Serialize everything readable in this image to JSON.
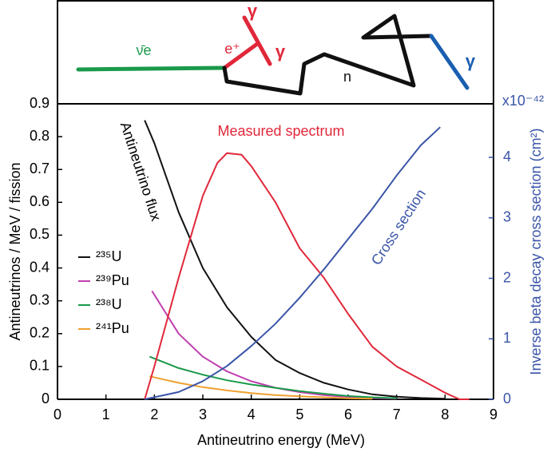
{
  "diagram": {
    "neutrino_label": "ν̄e",
    "positron_label": "e⁺",
    "gamma_labels": [
      "γ",
      "γ",
      "γ"
    ],
    "neutron_label": "n"
  },
  "chart_data": {
    "type": "line",
    "x_label": "Antineutrino energy (MeV)",
    "y_label": "Antineutrinos / MeV / fission",
    "y2_label": "Inverse beta decay cross section (cm²)",
    "y2_multiplier": "x10⁻⁴²",
    "annotations": [
      "Antineutrino flux",
      "Measured spectrum",
      "Cross section"
    ],
    "xlim": [
      0,
      9
    ],
    "xticks": [
      0,
      1,
      2,
      3,
      4,
      5,
      6,
      7,
      8,
      9
    ],
    "ylim": [
      0,
      0.9
    ],
    "yticks": [
      0,
      0.1,
      0.2,
      0.3,
      0.4,
      0.5,
      0.6,
      0.7,
      0.8,
      0.9
    ],
    "y2lim": [
      0,
      4.885
    ],
    "y2ticks": [
      0,
      1,
      2,
      3,
      4
    ],
    "series": [
      {
        "name": "²³⁵U",
        "color": "#111111",
        "legend": true,
        "x": [
          1.8,
          2,
          2.5,
          3,
          3.5,
          4,
          4.5,
          5,
          5.5,
          6,
          6.5,
          7,
          7.5,
          8
        ],
        "values": [
          0.85,
          0.78,
          0.57,
          0.4,
          0.28,
          0.19,
          0.12,
          0.08,
          0.05,
          0.03,
          0.015,
          0.008,
          0.004,
          0.002
        ]
      },
      {
        "name": "²³⁹Pu",
        "color": "#c040b0",
        "legend": true,
        "x": [
          1.95,
          2.5,
          3,
          3.5,
          4,
          4.5,
          5,
          5.5,
          6,
          6.5,
          7
        ],
        "values": [
          0.33,
          0.2,
          0.13,
          0.085,
          0.055,
          0.035,
          0.022,
          0.013,
          0.007,
          0.004,
          0.002
        ]
      },
      {
        "name": "²³⁸U",
        "color": "#1a9a4a",
        "legend": true,
        "x": [
          1.9,
          2.5,
          3,
          3.5,
          4,
          4.5,
          5,
          5.5,
          6,
          6.5,
          7
        ],
        "values": [
          0.13,
          0.095,
          0.075,
          0.058,
          0.045,
          0.035,
          0.025,
          0.017,
          0.01,
          0.006,
          0.003
        ]
      },
      {
        "name": "²⁴¹Pu",
        "color": "#f0a030",
        "legend": true,
        "x": [
          1.9,
          2.5,
          3,
          3.5,
          4,
          4.5,
          5,
          5.5,
          6,
          6.5
        ],
        "values": [
          0.07,
          0.05,
          0.037,
          0.027,
          0.019,
          0.013,
          0.009,
          0.006,
          0.003,
          0.002
        ]
      },
      {
        "color": "#e0283a",
        "legend": false,
        "x": [
          1.8,
          2,
          2.5,
          3,
          3.3,
          3.5,
          3.8,
          4,
          4.5,
          5,
          5.5,
          6,
          6.5,
          7,
          7.5,
          8,
          8.3,
          8.5
        ],
        "values": [
          0,
          0.1,
          0.37,
          0.62,
          0.72,
          0.75,
          0.745,
          0.71,
          0.6,
          0.46,
          0.37,
          0.26,
          0.16,
          0.1,
          0.06,
          0.02,
          0,
          0
        ]
      },
      {
        "color": "#3a55a8",
        "legend": false,
        "axis": "y2",
        "x": [
          1.8,
          2.5,
          3,
          3.5,
          4,
          4.5,
          5,
          5.5,
          6,
          6.5,
          7,
          7.5,
          7.9
        ],
        "values": [
          0,
          0.12,
          0.3,
          0.55,
          0.88,
          1.25,
          1.68,
          2.15,
          2.65,
          3.15,
          3.7,
          4.2,
          4.5
        ]
      }
    ]
  }
}
